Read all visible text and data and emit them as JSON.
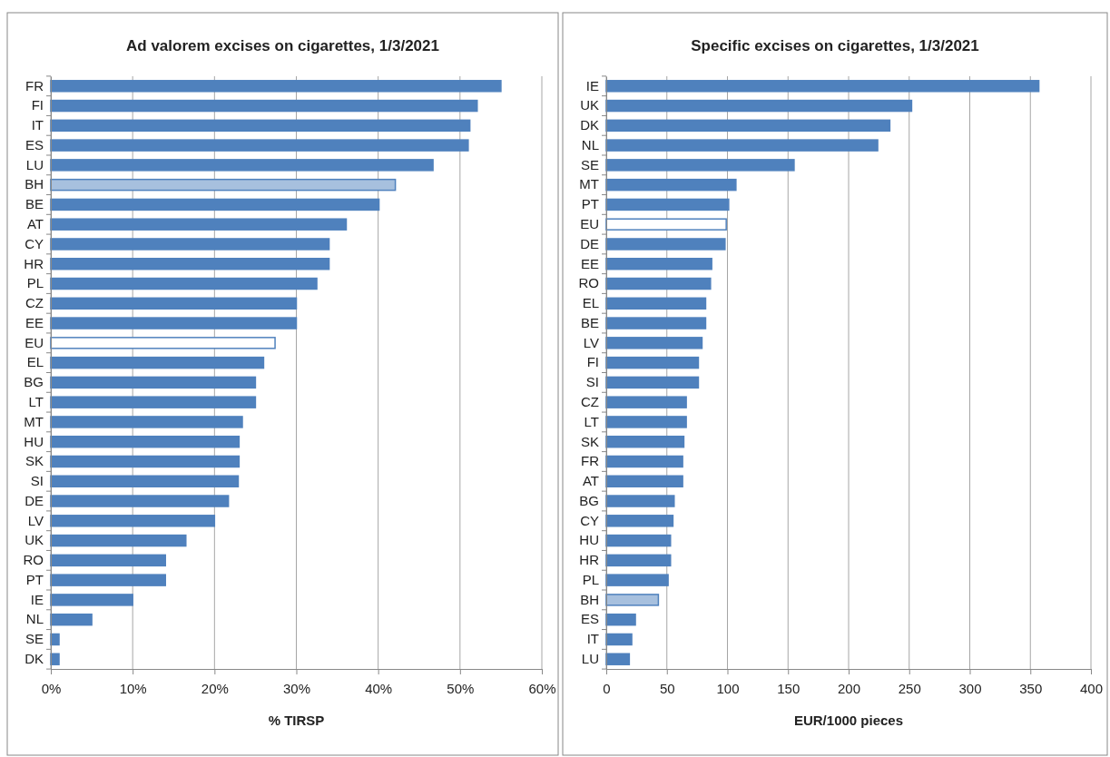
{
  "chart_data": [
    {
      "type": "bar",
      "orientation": "horizontal",
      "title": "Ad valorem excises on cigarettes, 1/3/2021",
      "xlabel": "% TIRSP",
      "categories": [
        "FR",
        "FI",
        "IT",
        "ES",
        "LU",
        "BH",
        "BE",
        "AT",
        "CY",
        "HR",
        "PL",
        "CZ",
        "EE",
        "EU",
        "EL",
        "BG",
        "LT",
        "MT",
        "HU",
        "SK",
        "SI",
        "DE",
        "LV",
        "UK",
        "RO",
        "PT",
        "IE",
        "NL",
        "SE",
        "DK"
      ],
      "series": [
        {
          "color": "#4f81bd",
          "values": [
            55.0,
            52.1,
            51.2,
            51.0,
            46.7,
            42.1,
            40.1,
            36.1,
            34.0,
            34.0,
            32.5,
            30.0,
            30.0,
            27.4,
            26.0,
            25.0,
            25.0,
            23.4,
            23.0,
            23.0,
            22.9,
            21.7,
            20.0,
            16.5,
            14.0,
            14.0,
            10.0,
            5.0,
            1.0,
            1.0
          ],
          "colors": [
            "#4f81bd",
            "#4f81bd",
            "#4f81bd",
            "#4f81bd",
            "#4f81bd",
            "#a7c0de",
            "#4f81bd",
            "#4f81bd",
            "#4f81bd",
            "#4f81bd",
            "#4f81bd",
            "#4f81bd",
            "#4f81bd",
            "#ffffff",
            "#4f81bd",
            "#4f81bd",
            "#4f81bd",
            "#4f81bd",
            "#4f81bd",
            "#4f81bd",
            "#4f81bd",
            "#4f81bd",
            "#4f81bd",
            "#4f81bd",
            "#4f81bd",
            "#4f81bd",
            "#4f81bd",
            "#4f81bd",
            "#4f81bd",
            "#4f81bd"
          ]
        }
      ],
      "xlim": [
        0,
        60
      ],
      "xticks": [
        {
          "value": 0,
          "label": "0%"
        },
        {
          "value": 10,
          "label": "10%"
        },
        {
          "value": 20,
          "label": "20%"
        },
        {
          "value": 30,
          "label": "30%"
        },
        {
          "value": 40,
          "label": "40%"
        },
        {
          "value": 50,
          "label": "50%"
        },
        {
          "value": 60,
          "label": "60%"
        }
      ],
      "grid": "x"
    },
    {
      "type": "bar",
      "orientation": "horizontal",
      "title": "Specific excises on cigarettes, 1/3/2021",
      "xlabel": "EUR/1000 pieces",
      "categories": [
        "IE",
        "UK",
        "DK",
        "NL",
        "SE",
        "MT",
        "PT",
        "EU",
        "DE",
        "EE",
        "RO",
        "EL",
        "BE",
        "LV",
        "FI",
        "SI",
        "CZ",
        "LT",
        "SK",
        "FR",
        "AT",
        "BG",
        "CY",
        "HU",
        "HR",
        "PL",
        "BH",
        "ES",
        "IT",
        "LU"
      ],
      "series": [
        {
          "color": "#4f81bd",
          "values": [
            357,
            252,
            234,
            224,
            155,
            107,
            101,
            99,
            98,
            87,
            86,
            82,
            82,
            79,
            76,
            76,
            66,
            66,
            64,
            63,
            63,
            56,
            55,
            53,
            53,
            51,
            43,
            24,
            21,
            19
          ],
          "colors": [
            "#4f81bd",
            "#4f81bd",
            "#4f81bd",
            "#4f81bd",
            "#4f81bd",
            "#4f81bd",
            "#4f81bd",
            "#ffffff",
            "#4f81bd",
            "#4f81bd",
            "#4f81bd",
            "#4f81bd",
            "#4f81bd",
            "#4f81bd",
            "#4f81bd",
            "#4f81bd",
            "#4f81bd",
            "#4f81bd",
            "#4f81bd",
            "#4f81bd",
            "#4f81bd",
            "#4f81bd",
            "#4f81bd",
            "#4f81bd",
            "#4f81bd",
            "#4f81bd",
            "#a7c0de",
            "#4f81bd",
            "#4f81bd",
            "#4f81bd"
          ]
        }
      ],
      "xlim": [
        0,
        400
      ],
      "xticks": [
        0,
        50,
        100,
        150,
        200,
        250,
        300,
        350,
        400
      ],
      "grid": "x"
    }
  ]
}
